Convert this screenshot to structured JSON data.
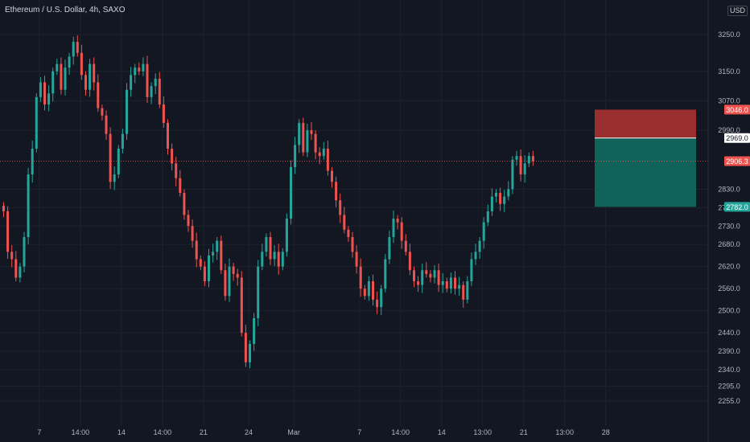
{
  "header": {
    "symbol_title": "Ethereum / U.S. Dollar, 4h, SAXO",
    "currency_button": "USD"
  },
  "colors": {
    "background": "#131722",
    "grid": "#1e222d",
    "up": "#26a69a",
    "down": "#ef5350",
    "axis_text": "#b2b5be",
    "stop_zone": "#9b2e2e",
    "target_zone": "#116258",
    "entry_line": "#ffffff"
  },
  "chart_data": {
    "type": "candlestick",
    "symbol": "Ethereum / U.S. Dollar",
    "interval": "4h",
    "source": "SAXO",
    "ylim": [
      2220,
      3300
    ],
    "y_ticks": [
      3250.0,
      3150.0,
      3070.0,
      2990.0,
      2830.0,
      2780.0,
      2730.0,
      2680.0,
      2620.0,
      2560.0,
      2500.0,
      2440.0,
      2390.0,
      2340.0,
      2295.0,
      2255.0
    ],
    "x_tick_labels": [
      {
        "label": "7",
        "index": 9
      },
      {
        "label": "14:00",
        "index": 19
      },
      {
        "label": "14",
        "index": 29
      },
      {
        "label": "14:00",
        "index": 39
      },
      {
        "label": "21",
        "index": 49
      },
      {
        "label": "24",
        "index": 60
      },
      {
        "label": "Mar",
        "index": 71
      },
      {
        "label": "7",
        "index": 87
      },
      {
        "label": "14:00",
        "index": 97
      },
      {
        "label": "14",
        "index": 107
      },
      {
        "label": "13:00",
        "index": 117
      },
      {
        "label": "21",
        "index": 127
      },
      {
        "label": "13:00",
        "index": 137
      },
      {
        "label": "28",
        "index": 147
      }
    ],
    "closes": [
      2770,
      2660,
      2640,
      2590,
      2620,
      2700,
      2870,
      2940,
      3080,
      3120,
      3060,
      3090,
      3150,
      3170,
      3100,
      3160,
      3190,
      3230,
      3200,
      3140,
      3100,
      3170,
      3120,
      3050,
      3030,
      2980,
      2850,
      2870,
      2940,
      2980,
      3100,
      3140,
      3160,
      3150,
      3170,
      3080,
      3110,
      3130,
      3060,
      3010,
      2940,
      2900,
      2860,
      2820,
      2760,
      2730,
      2690,
      2640,
      2620,
      2580,
      2650,
      2660,
      2690,
      2610,
      2540,
      2620,
      2600,
      2590,
      2440,
      2360,
      2410,
      2480,
      2620,
      2660,
      2700,
      2640,
      2660,
      2620,
      2660,
      2750,
      2890,
      2950,
      3010,
      2930,
      2990,
      2980,
      2930,
      2920,
      2940,
      2880,
      2850,
      2800,
      2760,
      2720,
      2700,
      2660,
      2620,
      2560,
      2540,
      2580,
      2530,
      2510,
      2560,
      2640,
      2700,
      2750,
      2740,
      2690,
      2660,
      2610,
      2580,
      2570,
      2610,
      2600,
      2590,
      2610,
      2570,
      2580,
      2560,
      2590,
      2560,
      2570,
      2530,
      2580,
      2640,
      2660,
      2690,
      2740,
      2770,
      2810,
      2820,
      2790,
      2810,
      2830,
      2910,
      2920,
      2870,
      2900,
      2920,
      2906.3
    ],
    "last_price": 2906.3,
    "position": {
      "stop_price": 3046.0,
      "entry_price": 2969.0,
      "target_price": 2782.0
    },
    "grid": true
  }
}
